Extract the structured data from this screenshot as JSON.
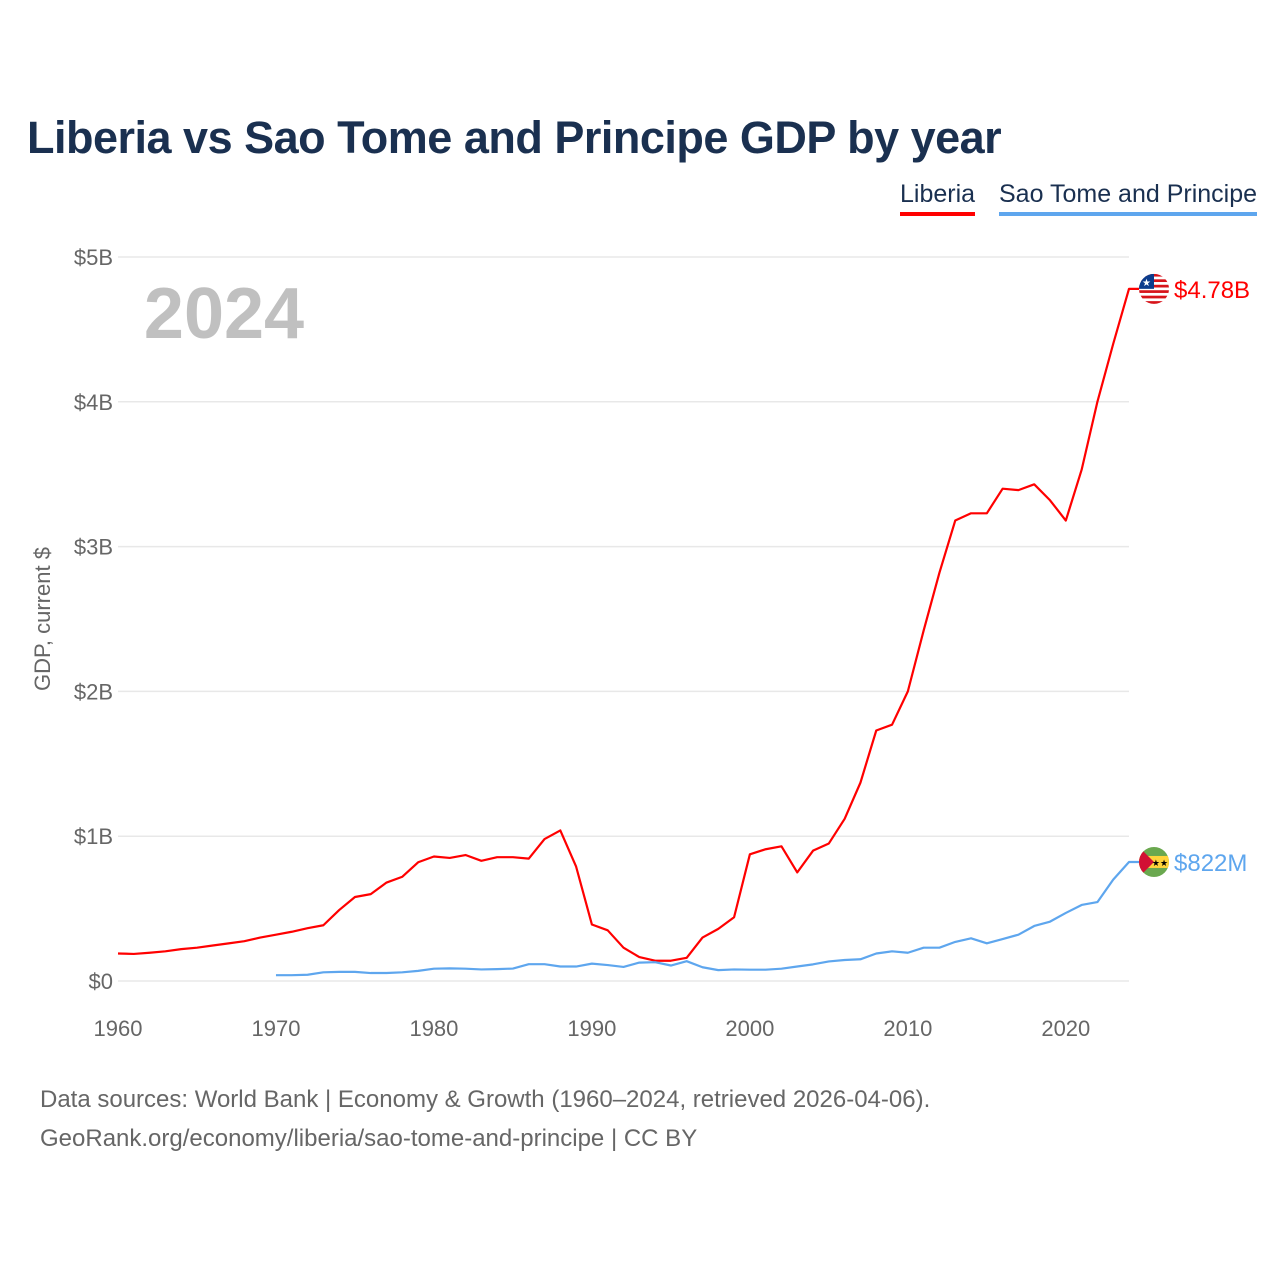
{
  "title": "Liberia vs Sao Tome and Principe GDP by year",
  "legend": [
    "Liberia",
    "Sao Tome and Principe"
  ],
  "year_watermark": "2024",
  "sources": {
    "line1": "Data sources: World Bank | Economy & Growth (1960–2024, retrieved 2026-04-06).",
    "line2": "GeoRank.org/economy/liberia/sao-tome-and-principe | CC BY"
  },
  "chart_data": {
    "type": "line",
    "title": "Liberia vs Sao Tome and Principe GDP by year",
    "ylabel": "GDP, current $",
    "xlabel": "",
    "xlim": [
      1960,
      2024
    ],
    "ylim": [
      0,
      5
    ],
    "y_unit": "billions USD",
    "x_ticks": [
      "1960",
      "1970",
      "1980",
      "1990",
      "2000",
      "2010",
      "2020"
    ],
    "y_ticks": [
      {
        "v": 0,
        "label": "$0"
      },
      {
        "v": 1,
        "label": "$1B"
      },
      {
        "v": 2,
        "label": "$2B"
      },
      {
        "v": 3,
        "label": "$3B"
      },
      {
        "v": 4,
        "label": "$4B"
      },
      {
        "v": 5,
        "label": "$5B"
      }
    ],
    "grid": true,
    "legend_position": "top-right",
    "series": [
      {
        "name": "Liberia",
        "color": "#ff0000",
        "end_label": "$4.78B",
        "flag": "liberia-flag",
        "start": 1960,
        "values": [
          0.19,
          0.187,
          0.195,
          0.205,
          0.22,
          0.23,
          0.245,
          0.26,
          0.275,
          0.3,
          0.32,
          0.34,
          0.365,
          0.385,
          0.49,
          0.58,
          0.6,
          0.68,
          0.72,
          0.82,
          0.86,
          0.85,
          0.87,
          0.83,
          0.855,
          0.855,
          0.845,
          0.98,
          1.04,
          0.79,
          0.39,
          0.35,
          0.23,
          0.165,
          0.14,
          0.14,
          0.16,
          0.3,
          0.36,
          0.44,
          0.875,
          0.91,
          0.93,
          0.75,
          0.9,
          0.95,
          1.12,
          1.37,
          1.73,
          1.77,
          2.0,
          2.42,
          2.82,
          3.18,
          3.23,
          3.23,
          3.4,
          3.39,
          3.43,
          3.32,
          3.18,
          3.53,
          4.0,
          4.4,
          4.78
        ]
      },
      {
        "name": "Sao Tome and Principe",
        "color": "#5ea6ee",
        "end_label": "$822M",
        "flag": "sao-tome-flag",
        "start": 1970,
        "values": [
          0.04,
          0.04,
          0.043,
          0.06,
          0.063,
          0.063,
          0.055,
          0.055,
          0.06,
          0.07,
          0.085,
          0.087,
          0.085,
          0.08,
          0.082,
          0.086,
          0.116,
          0.116,
          0.1,
          0.1,
          0.12,
          0.11,
          0.097,
          0.127,
          0.13,
          0.107,
          0.137,
          0.095,
          0.075,
          0.08,
          0.078,
          0.078,
          0.085,
          0.1,
          0.115,
          0.135,
          0.145,
          0.15,
          0.19,
          0.205,
          0.195,
          0.23,
          0.23,
          0.27,
          0.295,
          0.26,
          0.29,
          0.32,
          0.38,
          0.41,
          0.47,
          0.525,
          0.545,
          0.7,
          0.822
        ]
      }
    ]
  }
}
